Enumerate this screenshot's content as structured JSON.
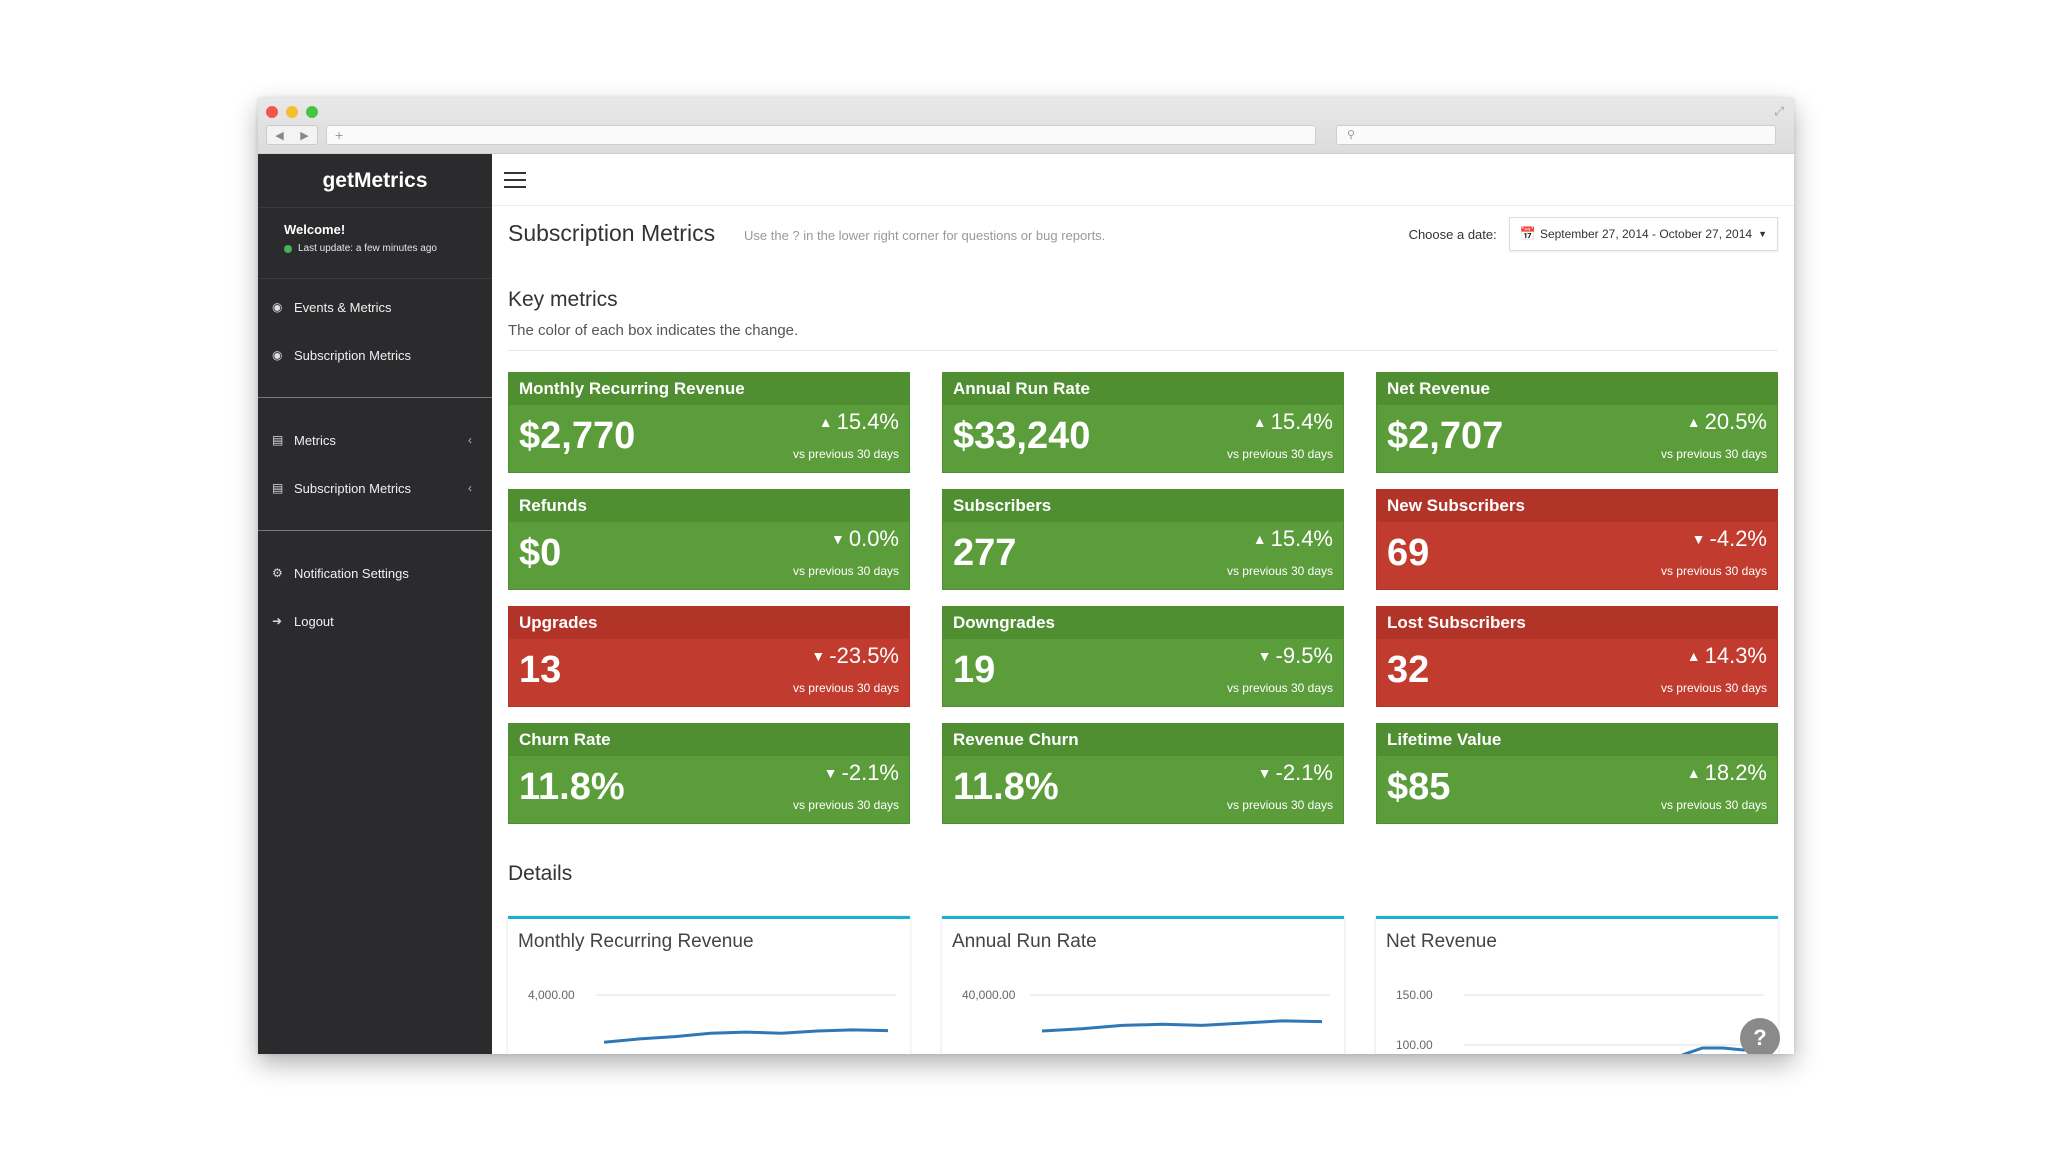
{
  "sidebar": {
    "brand": "getMetrics",
    "welcome": "Welcome!",
    "last_update": "Last update: a few minutes ago",
    "group1": [
      {
        "label": "Events & Metrics",
        "icon": "dashboard-icon"
      },
      {
        "label": "Subscription Metrics",
        "icon": "dashboard-icon"
      }
    ],
    "group2": [
      {
        "label": "Metrics",
        "icon": "bar-chart-icon"
      },
      {
        "label": "Subscription Metrics",
        "icon": "bar-chart-icon"
      }
    ],
    "group3": [
      {
        "label": "Notification Settings",
        "icon": "gear-icon"
      },
      {
        "label": "Logout",
        "icon": "logout-arrow-icon"
      }
    ]
  },
  "header": {
    "title": "Subscription Metrics",
    "hint": "Use the ? in the lower right corner for questions or bug reports.",
    "date_label": "Choose a date:",
    "date_range": "September 27, 2014 - October 27, 2014"
  },
  "key_metrics": {
    "title": "Key metrics",
    "subtitle": "The color of each box indicates the change.",
    "comparison_text": "vs previous 30 days",
    "cards": [
      {
        "label": "Monthly Recurring Revenue",
        "value": "$2,770",
        "change": "15.4%",
        "direction": "up",
        "status": "green"
      },
      {
        "label": "Annual Run Rate",
        "value": "$33,240",
        "change": "15.4%",
        "direction": "up",
        "status": "green"
      },
      {
        "label": "Net Revenue",
        "value": "$2,707",
        "change": "20.5%",
        "direction": "up",
        "status": "green"
      },
      {
        "label": "Refunds",
        "value": "$0",
        "change": "0.0%",
        "direction": "down",
        "status": "green"
      },
      {
        "label": "Subscribers",
        "value": "277",
        "change": "15.4%",
        "direction": "up",
        "status": "green"
      },
      {
        "label": "New Subscribers",
        "value": "69",
        "change": "-4.2%",
        "direction": "down",
        "status": "red"
      },
      {
        "label": "Upgrades",
        "value": "13",
        "change": "-23.5%",
        "direction": "down",
        "status": "red"
      },
      {
        "label": "Downgrades",
        "value": "19",
        "change": "-9.5%",
        "direction": "down",
        "status": "green"
      },
      {
        "label": "Lost Subscribers",
        "value": "32",
        "change": "14.3%",
        "direction": "up",
        "status": "red"
      },
      {
        "label": "Churn Rate",
        "value": "11.8%",
        "change": "-2.1%",
        "direction": "down",
        "status": "green"
      },
      {
        "label": "Revenue Churn",
        "value": "11.8%",
        "change": "-2.1%",
        "direction": "down",
        "status": "green"
      },
      {
        "label": "Lifetime Value",
        "value": "$85",
        "change": "18.2%",
        "direction": "up",
        "status": "green"
      }
    ]
  },
  "details": {
    "title": "Details",
    "charts": [
      {
        "title": "Monthly Recurring Revenue",
        "ticks": [
          "4,000.00"
        ],
        "series": [
          1900,
          2050,
          2150,
          2300,
          2350,
          2300,
          2400,
          2450,
          2420
        ]
      },
      {
        "title": "Annual Run Rate",
        "ticks": [
          "40,000.00"
        ],
        "series": [
          24000,
          25000,
          26500,
          27000,
          26500,
          27500,
          28500,
          28200
        ]
      },
      {
        "title": "Net Revenue",
        "ticks": [
          "150.00",
          "100.00"
        ],
        "series": [
          90,
          97,
          97,
          95,
          99
        ]
      }
    ]
  },
  "help_label": "?",
  "colors": {
    "green": "#5b9c3b",
    "red": "#c13b2e",
    "sidebar": "#2b2b2e",
    "chart_line": "#2f78b5",
    "chart_border": "#1ab0d4"
  }
}
